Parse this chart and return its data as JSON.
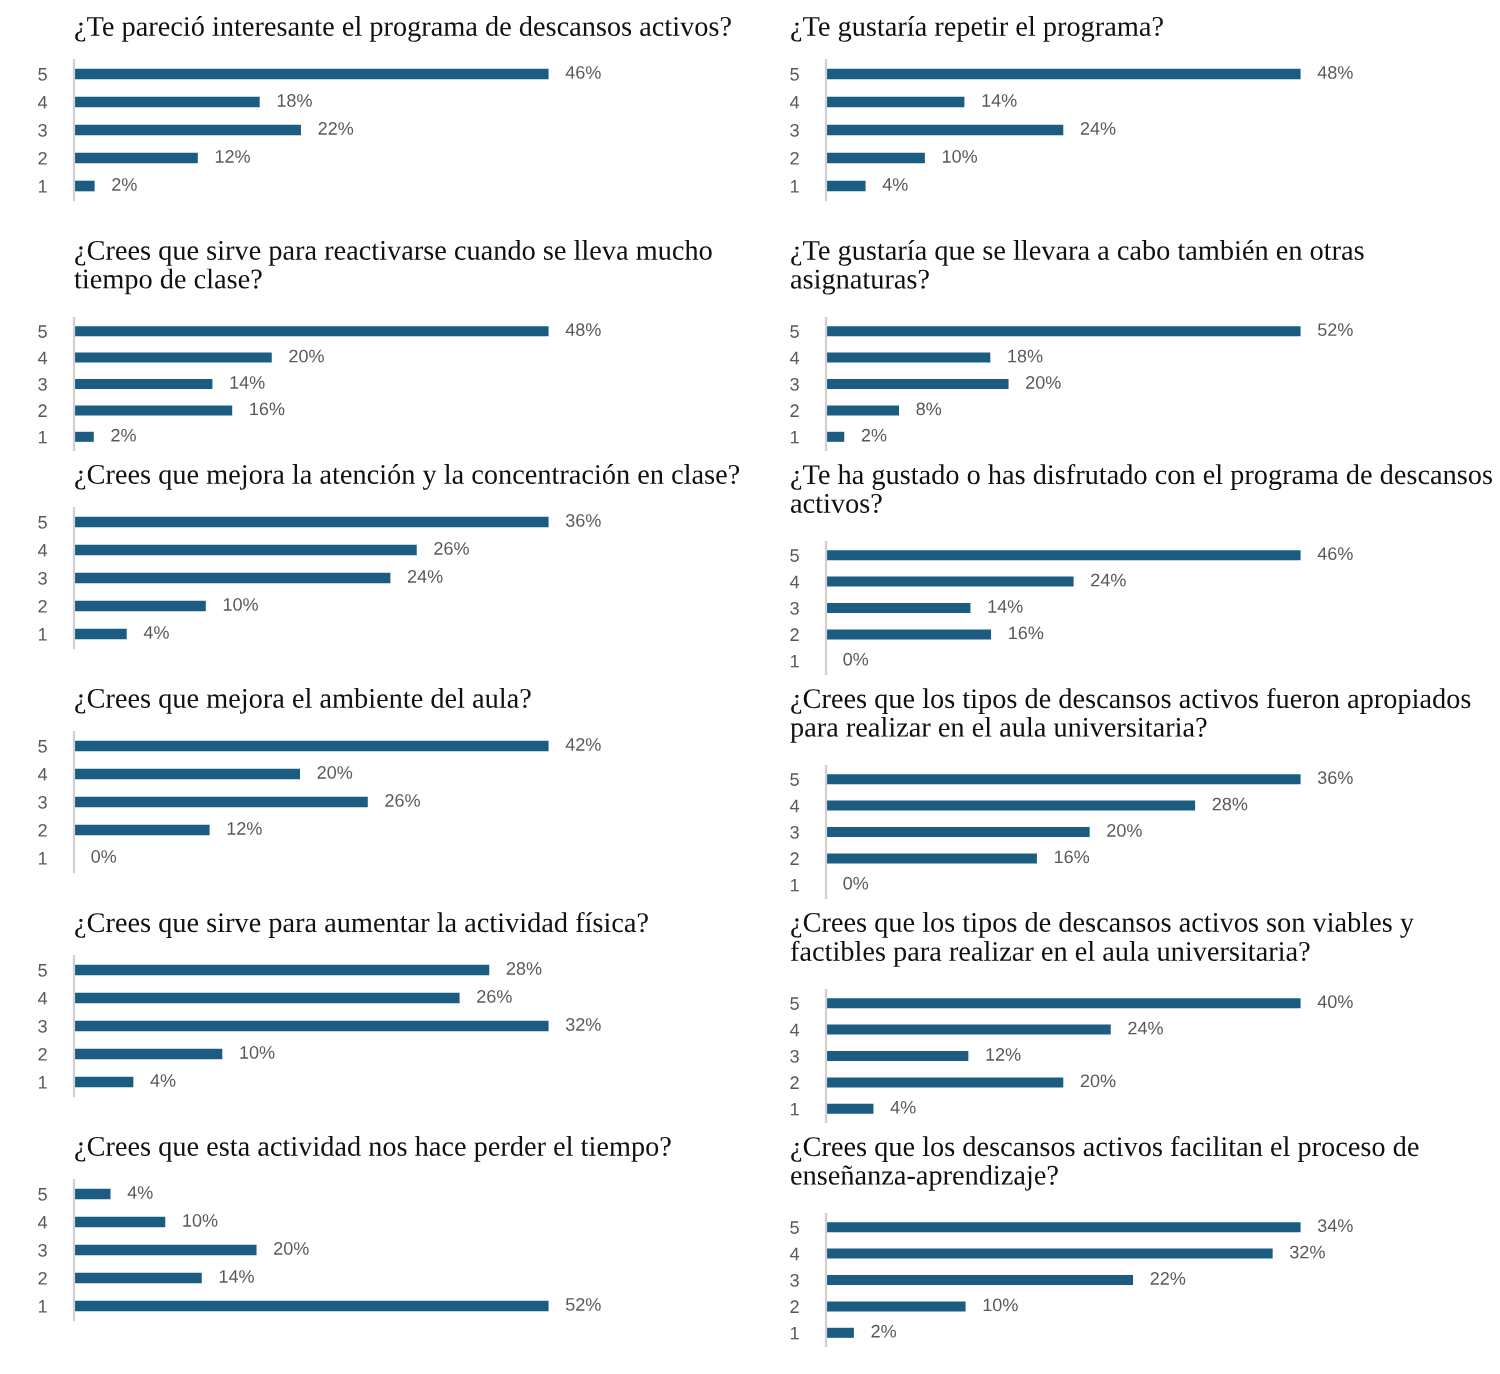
{
  "chart_data": [
    {
      "type": "bar",
      "orientation": "horizontal",
      "title": "¿Te pareció interesante el programa de descansos activos?",
      "categories": [
        "5",
        "4",
        "3",
        "2",
        "1"
      ],
      "values": [
        46,
        18,
        22,
        12,
        2
      ],
      "value_labels": [
        "46%",
        "18%",
        "22%",
        "12%",
        "2%"
      ],
      "color": "#1b5c80",
      "tick_labels": "y"
    },
    {
      "type": "bar",
      "orientation": "horizontal",
      "title": "¿Te gustaría repetir el programa?",
      "categories": [
        "5",
        "4",
        "3",
        "2",
        "1"
      ],
      "values": [
        48,
        14,
        24,
        10,
        4
      ],
      "value_labels": [
        "48%",
        "14%",
        "24%",
        "10%",
        "4%"
      ],
      "color": "#1b5c80",
      "tick_labels": "y"
    },
    {
      "type": "bar",
      "orientation": "horizontal",
      "title": "¿Crees que sirve para reactivarse cuando se lleva mucho tiempo de clase?",
      "categories": [
        "5",
        "4",
        "3",
        "2",
        "1"
      ],
      "values": [
        48,
        20,
        14,
        16,
        2
      ],
      "value_labels": [
        "48%",
        "20%",
        "14%",
        "16%",
        "2%"
      ],
      "color": "#1b5c80",
      "tick_labels": "y"
    },
    {
      "type": "bar",
      "orientation": "horizontal",
      "title": "¿Te gustaría que se llevara a cabo también en otras asignaturas?",
      "categories": [
        "5",
        "4",
        "3",
        "2",
        "1"
      ],
      "values": [
        52,
        18,
        20,
        8,
        2
      ],
      "value_labels": [
        "52%",
        "18%",
        "20%",
        "8%",
        "2%"
      ],
      "color": "#1b5c80",
      "tick_labels": "y"
    },
    {
      "type": "bar",
      "orientation": "horizontal",
      "title": "¿Crees que mejora la atención y la concentración en clase?",
      "categories": [
        "5",
        "4",
        "3",
        "2",
        "1"
      ],
      "values": [
        36,
        26,
        24,
        10,
        4
      ],
      "value_labels": [
        "36%",
        "26%",
        "24%",
        "10%",
        "4%"
      ],
      "color": "#1b5c80",
      "tick_labels": "y"
    },
    {
      "type": "bar",
      "orientation": "horizontal",
      "title": "¿Te ha gustado o has disfrutado con el programa de descansos activos?",
      "categories": [
        "5",
        "4",
        "3",
        "2",
        "1"
      ],
      "values": [
        46,
        24,
        14,
        16,
        0
      ],
      "value_labels": [
        "46%",
        "24%",
        "14%",
        "16%",
        "0%"
      ],
      "color": "#1b5c80",
      "tick_labels": "y"
    },
    {
      "type": "bar",
      "orientation": "horizontal",
      "title": "¿Crees que mejora el ambiente del aula?",
      "categories": [
        "5",
        "4",
        "3",
        "2",
        "1"
      ],
      "values": [
        42,
        20,
        26,
        12,
        0
      ],
      "value_labels": [
        "42%",
        "20%",
        "26%",
        "12%",
        "0%"
      ],
      "color": "#1b5c80",
      "tick_labels": "y"
    },
    {
      "type": "bar",
      "orientation": "horizontal",
      "title": "¿Crees que los tipos de descansos activos fueron apropiados para realizar en el aula universitaria?",
      "categories": [
        "5",
        "4",
        "3",
        "2",
        "1"
      ],
      "values": [
        36,
        28,
        20,
        16,
        0
      ],
      "value_labels": [
        "36%",
        "28%",
        "20%",
        "16%",
        "0%"
      ],
      "color": "#1b5c80",
      "tick_labels": "y"
    },
    {
      "type": "bar",
      "orientation": "horizontal",
      "title": "¿Crees que sirve para aumentar la actividad física?",
      "categories": [
        "5",
        "4",
        "3",
        "2",
        "1"
      ],
      "values": [
        28,
        26,
        32,
        10,
        4
      ],
      "value_labels": [
        "28%",
        "26%",
        "32%",
        "10%",
        "4%"
      ],
      "color": "#1b5c80",
      "tick_labels": "y"
    },
    {
      "type": "bar",
      "orientation": "horizontal",
      "title": "¿Crees que los tipos de descansos activos son viables y factibles para realizar en el aula universitaria?",
      "categories": [
        "5",
        "4",
        "3",
        "2",
        "1"
      ],
      "values": [
        40,
        24,
        12,
        20,
        4
      ],
      "value_labels": [
        "40%",
        "24%",
        "12%",
        "20%",
        "4%"
      ],
      "color": "#1b5c80",
      "tick_labels": "y"
    },
    {
      "type": "bar",
      "orientation": "horizontal",
      "title": "¿Crees que esta actividad nos hace perder el tiempo?",
      "categories": [
        "5",
        "4",
        "3",
        "2",
        "1"
      ],
      "values": [
        4,
        10,
        20,
        14,
        52
      ],
      "value_labels": [
        "4%",
        "10%",
        "20%",
        "14%",
        "52%"
      ],
      "color": "#1b5c80",
      "tick_labels": "y"
    },
    {
      "type": "bar",
      "orientation": "horizontal",
      "title": "¿Crees que los descansos activos facilitan el proceso de enseñanza-aprendizaje?",
      "categories": [
        "5",
        "4",
        "3",
        "2",
        "1"
      ],
      "values": [
        34,
        32,
        22,
        10,
        2
      ],
      "value_labels": [
        "34%",
        "32%",
        "22%",
        "10%",
        "2%"
      ],
      "color": "#1b5c80",
      "tick_labels": "y"
    }
  ]
}
